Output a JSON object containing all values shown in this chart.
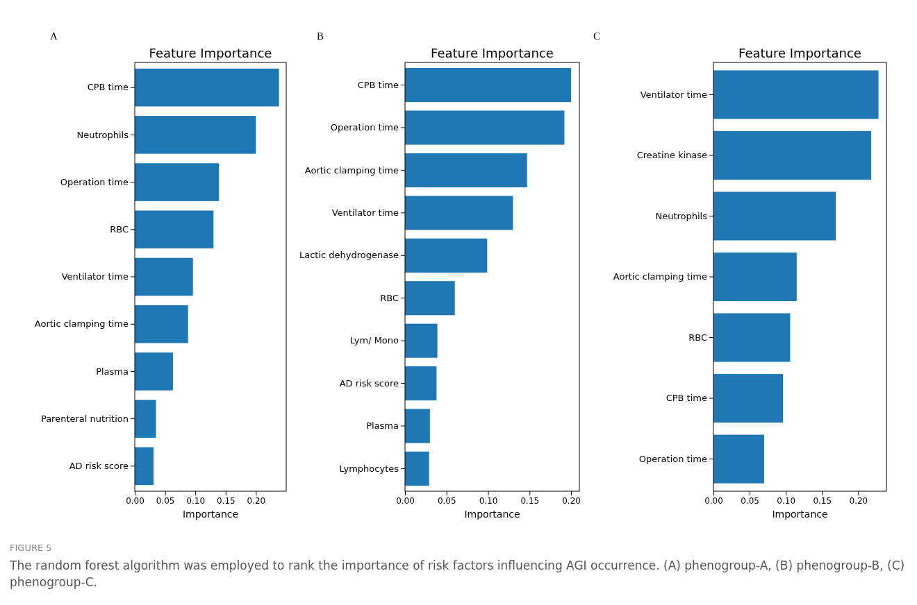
{
  "chart_data": [
    {
      "type": "bar",
      "orientation": "horizontal",
      "title": "Feature Importance",
      "xlabel": "Importance",
      "annotations": [
        "A",
        "FIGURE 5",
        "The random forest algorithm was employed to rank the importance of risk factors influencing AGI occurrence. (A) phenogroup-A, (B) phenogroup-B, (C) phenogroup-C."
      ],
      "categories": [
        "CPB time",
        "Neutrophils",
        "Operation time",
        "RBC",
        "Ventilator time",
        "Aortic clamping time",
        "Plasma",
        "Parenteral nutrition",
        "AD risk score"
      ],
      "values": [
        0.238,
        0.2,
        0.139,
        0.13,
        0.096,
        0.088,
        0.063,
        0.035,
        0.031
      ],
      "color": "#1f77b4",
      "xlim": [
        0,
        0.25
      ],
      "xticks": [
        {
          "value": 0,
          "label": "0.00"
        },
        {
          "value": 0.05,
          "label": "0.05"
        },
        {
          "value": 0.1,
          "label": "0.10"
        },
        {
          "value": 0.15,
          "label": "0.15"
        },
        {
          "value": 0.2,
          "label": "0.20"
        }
      ]
    },
    {
      "type": "bar",
      "orientation": "horizontal",
      "title": "Feature Importance",
      "xlabel": "Importance",
      "annotations": [
        "B"
      ],
      "categories": [
        "CPB time",
        "Operation time",
        "Aortic clamping time",
        "Ventilator time",
        "Lactic dehydrogenase",
        "RBC",
        "Lym/ Mono",
        "AD risk score",
        "Plasma",
        "Lymphocytes"
      ],
      "values": [
        0.2,
        0.192,
        0.147,
        0.13,
        0.099,
        0.06,
        0.039,
        0.038,
        0.03,
        0.029
      ],
      "color": "#1f77b4",
      "xlim": [
        0,
        0.21
      ],
      "xticks": [
        {
          "value": 0,
          "label": "0.00"
        },
        {
          "value": 0.05,
          "label": "0.05"
        },
        {
          "value": 0.1,
          "label": "0.10"
        },
        {
          "value": 0.15,
          "label": "0.15"
        },
        {
          "value": 0.2,
          "label": "0.20"
        }
      ]
    },
    {
      "type": "bar",
      "orientation": "horizontal",
      "title": "Feature Importance",
      "xlabel": "Importance",
      "annotations": [
        "C"
      ],
      "categories": [
        "Ventilator time",
        "Creatine kinase",
        "Neutrophils",
        "Aortic clamping time",
        "RBC",
        "CPB time",
        "Operation time"
      ],
      "values": [
        0.228,
        0.218,
        0.169,
        0.115,
        0.106,
        0.096,
        0.07
      ],
      "color": "#1f77b4",
      "xlim": [
        0,
        0.239
      ],
      "xticks": [
        {
          "value": 0,
          "label": "0.00"
        },
        {
          "value": 0.05,
          "label": "0.05"
        },
        {
          "value": 0.1,
          "label": "0.10"
        },
        {
          "value": 0.15,
          "label": "0.15"
        },
        {
          "value": 0.2,
          "label": "0.20"
        }
      ]
    }
  ]
}
